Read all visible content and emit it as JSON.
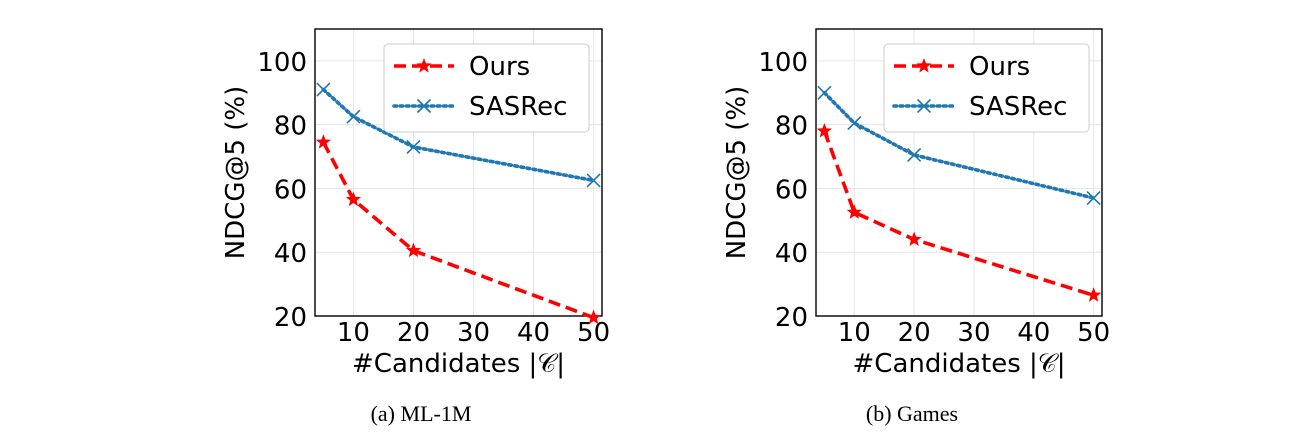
{
  "chart_data": [
    {
      "type": "line",
      "title": "",
      "caption": "(a) ML-1M",
      "xlabel": "#Candidates |𝒞|",
      "ylabel": "NDCG@5 (%)",
      "xlim": [
        3.6,
        51.4
      ],
      "ylim": [
        20,
        110
      ],
      "xticks": [
        "10",
        "20",
        "30",
        "40",
        "50"
      ],
      "yticks": [
        "20",
        "40",
        "60",
        "80",
        "100"
      ],
      "grid": true,
      "legend_position": "top-right",
      "x": [
        5,
        10,
        20,
        50
      ],
      "series": [
        {
          "name": "Ours",
          "values": [
            74.5,
            56.5,
            40.5,
            19.5
          ],
          "color": "#ff0000",
          "marker": "star",
          "linestyle": "dashed"
        },
        {
          "name": "SASRec",
          "values": [
            91,
            82.5,
            73,
            62.5
          ],
          "color": "#1f77b4",
          "marker": "x",
          "linestyle": "dotted"
        }
      ]
    },
    {
      "type": "line",
      "title": "",
      "caption": "(b) Games",
      "xlabel": "#Candidates |𝒞|",
      "ylabel": "NDCG@5 (%)",
      "xlim": [
        3.6,
        51.4
      ],
      "ylim": [
        20,
        110
      ],
      "xticks": [
        "10",
        "20",
        "30",
        "40",
        "50"
      ],
      "yticks": [
        "20",
        "40",
        "60",
        "80",
        "100"
      ],
      "grid": true,
      "legend_position": "top-right",
      "x": [
        5,
        10,
        20,
        50
      ],
      "series": [
        {
          "name": "Ours",
          "values": [
            78,
            52.5,
            44,
            26.5
          ],
          "color": "#ff0000",
          "marker": "star",
          "linestyle": "dashed"
        },
        {
          "name": "SASRec",
          "values": [
            90,
            80.5,
            70.5,
            57
          ],
          "color": "#1f77b4",
          "marker": "x",
          "linestyle": "dotted"
        }
      ]
    }
  ]
}
